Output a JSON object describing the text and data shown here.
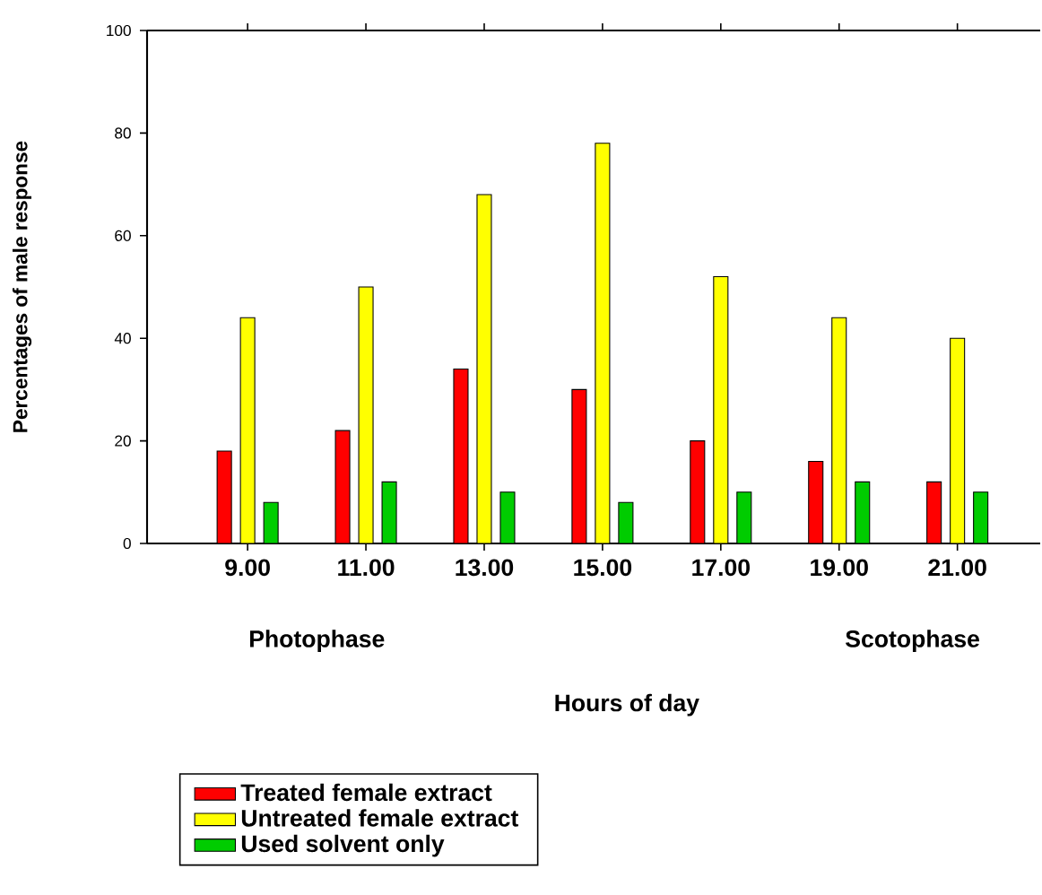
{
  "chart_data": {
    "type": "bar",
    "xlabel": "Hours of day",
    "ylabel": "Percentages of male response",
    "categories": [
      "9.00",
      "11.00",
      "13.00",
      "15.00",
      "17.00",
      "19.00",
      "21.00"
    ],
    "series": [
      {
        "name": "Treated female extract",
        "color": "#ff0000",
        "values": [
          18,
          22,
          34,
          30,
          20,
          16,
          12
        ]
      },
      {
        "name": "Untreated female extract",
        "color": "#ffff00",
        "values": [
          44,
          50,
          68,
          78,
          52,
          44,
          40
        ]
      },
      {
        "name": "Used solvent only",
        "color": "#00cc00",
        "values": [
          8,
          12,
          10,
          8,
          10,
          12,
          10
        ]
      }
    ],
    "ylim": [
      0,
      100
    ],
    "yticks": [
      0,
      20,
      40,
      60,
      80,
      100
    ],
    "grid": false,
    "legend": "bottom",
    "annotations": [
      "Photophase",
      "Scotophase"
    ]
  }
}
